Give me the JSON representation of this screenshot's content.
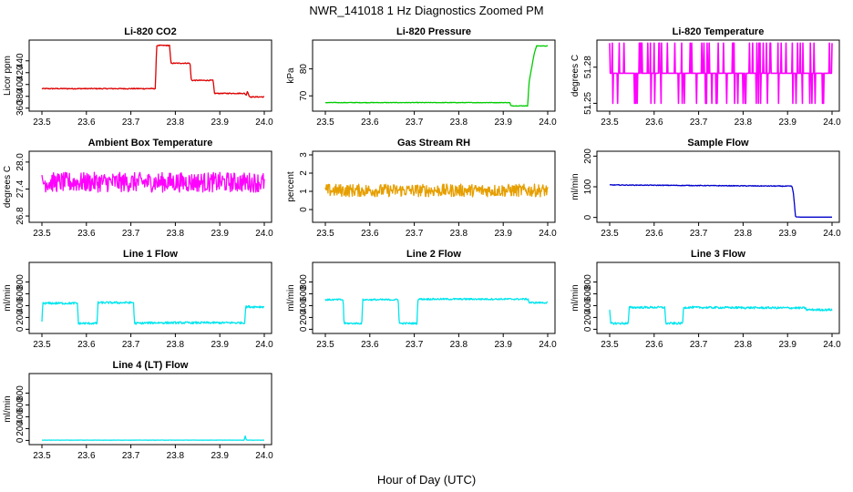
{
  "figure": {
    "title": "NWR_141018  1 Hz Diagnostics Zoomed PM",
    "xlabel": "Hour of Day (UTC)"
  },
  "chart_data": [
    {
      "type": "line",
      "title": "Li-820 CO2",
      "ylabel": "Licor ppm",
      "xlim": [
        23.5,
        24.0
      ],
      "xticks": [
        "23.5",
        "23.6",
        "23.7",
        "23.8",
        "23.9",
        "24.0"
      ],
      "ylim": [
        358,
        472
      ],
      "yticks": [
        "360",
        "380",
        "400",
        "420",
        "440"
      ],
      "color": "#dd0000",
      "noise": 0.8,
      "x": [
        23.5,
        23.755,
        23.758,
        23.787,
        23.79,
        23.833,
        23.836,
        23.885,
        23.888,
        23.955,
        23.96,
        23.962,
        23.966,
        23.97,
        24.0
      ],
      "y": [
        393,
        393,
        466,
        466,
        436,
        436,
        407,
        407,
        385,
        385,
        382,
        389,
        380,
        379,
        379
      ]
    },
    {
      "type": "line",
      "title": "Li-820 Pressure",
      "ylabel": "kPa",
      "xlim": [
        23.5,
        24.0
      ],
      "xticks": [
        "23.5",
        "23.6",
        "23.7",
        "23.8",
        "23.9",
        "24.0"
      ],
      "ylim": [
        65,
        90
      ],
      "yticks": [
        "70",
        "80"
      ],
      "color": "#00cc00",
      "noise": 0.1,
      "x": [
        23.5,
        23.915,
        23.917,
        23.955,
        23.958,
        23.97,
        23.975,
        24.0
      ],
      "y": [
        67.5,
        67.5,
        66.3,
        66.3,
        75,
        86,
        88.5,
        88.5
      ]
    },
    {
      "type": "line",
      "title": "Li-820 Temperature",
      "ylabel": "degrees C",
      "xlim": [
        23.5,
        24.0
      ],
      "xticks": [
        "23.5",
        "23.6",
        "23.7",
        "23.8",
        "23.9",
        "24.0"
      ],
      "ylim": [
        51.245,
        51.301
      ],
      "yticks": [
        "51.25",
        "51.28"
      ],
      "color": "#ff00ff",
      "quantized": [
        51.25,
        51.275,
        51.3
      ],
      "x": [
        23.5,
        24.0
      ],
      "y": [
        51.275,
        51.275
      ]
    },
    {
      "type": "line",
      "title": "Ambient Box Temperature",
      "ylabel": "degrees C",
      "xlim": [
        23.5,
        24.0
      ],
      "xticks": [
        "23.5",
        "23.6",
        "23.7",
        "23.8",
        "23.9",
        "24.0"
      ],
      "ylim": [
        26.7,
        28.2
      ],
      "yticks": [
        "26.8",
        "27.4",
        "28.0"
      ],
      "color": "#ff00ff",
      "noise": 0.22,
      "x": [
        23.5,
        24.0
      ],
      "y": [
        27.55,
        27.55
      ]
    },
    {
      "type": "line",
      "title": "Gas Stream RH",
      "ylabel": "percent",
      "xlim": [
        23.5,
        24.0
      ],
      "xticks": [
        "23.5",
        "23.6",
        "23.7",
        "23.8",
        "23.9",
        "24.0"
      ],
      "ylim": [
        -0.6,
        3.1
      ],
      "yticks": [
        "0",
        "1",
        "2",
        "3"
      ],
      "color": "#e69f00",
      "noise": 0.35,
      "x": [
        23.5,
        24.0
      ],
      "y": [
        1.05,
        1.05
      ]
    },
    {
      "type": "line",
      "title": "Sample Flow",
      "ylabel": "ml/min",
      "xlim": [
        23.5,
        24.0
      ],
      "xticks": [
        "23.5",
        "23.6",
        "23.7",
        "23.8",
        "23.9",
        "24.0"
      ],
      "ylim": [
        -10,
        210
      ],
      "yticks": [
        "0",
        "100",
        "200"
      ],
      "color": "#0000cc",
      "noise": 1.2,
      "x": [
        23.5,
        23.91,
        23.913,
        23.918,
        23.93,
        24.0
      ],
      "y": [
        106,
        102,
        80,
        2,
        1,
        1
      ],
      "noiseTo": 23.91
    },
    {
      "type": "line",
      "title": "Line 1 Flow",
      "ylabel": "ml/min",
      "xlim": [
        23.5,
        24.0
      ],
      "xticks": [
        "23.5",
        "23.6",
        "23.7",
        "23.8",
        "23.9",
        "24.0"
      ],
      "ylim": [
        -40,
        1100
      ],
      "yticks": [
        "0",
        "200",
        "400",
        "600",
        "800"
      ],
      "color": "#00e5ee",
      "noise": 18,
      "x": [
        23.5,
        23.502,
        23.58,
        23.582,
        23.624,
        23.626,
        23.706,
        23.708,
        23.75,
        23.956,
        23.958,
        24.0
      ],
      "y": [
        130,
        440,
        440,
        100,
        100,
        450,
        450,
        100,
        110,
        110,
        380,
        380
      ]
    },
    {
      "type": "line",
      "title": "Line 2 Flow",
      "ylabel": "ml/min",
      "xlim": [
        23.5,
        24.0
      ],
      "xticks": [
        "23.5",
        "23.6",
        "23.7",
        "23.8",
        "23.9",
        "24.0"
      ],
      "ylim": [
        -40,
        1100
      ],
      "yticks": [
        "0",
        "200",
        "400",
        "600",
        "800"
      ],
      "color": "#00e5ee",
      "noise": 14,
      "x": [
        23.5,
        23.54,
        23.542,
        23.582,
        23.584,
        23.664,
        23.666,
        23.706,
        23.708,
        23.956,
        23.958,
        24.0
      ],
      "y": [
        500,
        500,
        100,
        100,
        500,
        500,
        100,
        100,
        510,
        510,
        450,
        450
      ]
    },
    {
      "type": "line",
      "title": "Line 3 Flow",
      "ylabel": "ml/min",
      "xlim": [
        23.5,
        24.0
      ],
      "xticks": [
        "23.5",
        "23.6",
        "23.7",
        "23.8",
        "23.9",
        "24.0"
      ],
      "ylim": [
        -40,
        1100
      ],
      "yticks": [
        "0",
        "200",
        "400",
        "600",
        "800"
      ],
      "color": "#00e5ee",
      "noise": 18,
      "x": [
        23.5,
        23.502,
        23.542,
        23.544,
        23.624,
        23.626,
        23.664,
        23.666,
        23.94,
        23.942,
        24.0
      ],
      "y": [
        330,
        100,
        100,
        370,
        370,
        100,
        100,
        370,
        360,
        330,
        330
      ]
    },
    {
      "type": "line",
      "title": "Line 4 (LT) Flow",
      "ylabel": "ml/min",
      "xlim": [
        23.5,
        24.0
      ],
      "xticks": [
        "23.5",
        "23.6",
        "23.7",
        "23.8",
        "23.9",
        "24.0"
      ],
      "ylim": [
        -40,
        1100
      ],
      "yticks": [
        "0",
        "200",
        "400",
        "600",
        "800"
      ],
      "color": "#00e5ee",
      "noise": 1.5,
      "x": [
        23.5,
        23.955,
        23.957,
        23.959,
        23.961,
        24.0
      ],
      "y": [
        5,
        5,
        80,
        20,
        5,
        5
      ]
    }
  ]
}
